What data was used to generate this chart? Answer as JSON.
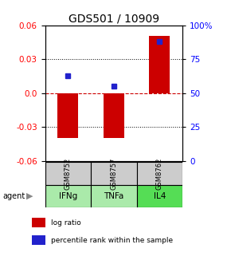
{
  "title": "GDS501 / 10909",
  "samples": [
    "GSM8752",
    "GSM8757",
    "GSM8762"
  ],
  "agents": [
    "IFNg",
    "TNFa",
    "IL4"
  ],
  "log_ratios": [
    -0.04,
    -0.04,
    0.051
  ],
  "percentile_ranks": [
    0.63,
    0.55,
    0.88
  ],
  "ylim_left": [
    -0.06,
    0.06
  ],
  "yticks_left": [
    -0.06,
    -0.03,
    0.0,
    0.03,
    0.06
  ],
  "yticks_right": [
    0.0,
    0.25,
    0.5,
    0.75,
    1.0
  ],
  "ytick_right_labels": [
    "0",
    "25",
    "50",
    "75",
    "100%"
  ],
  "bar_color": "#cc0000",
  "dot_color": "#2222cc",
  "zero_line_color": "#cc0000",
  "sample_bg_color": "#cccccc",
  "agent_bg_color_light": "#aaeaaa",
  "agent_bg_color_dark": "#55dd55",
  "title_fontsize": 10,
  "axis_fontsize": 7.5,
  "bar_width": 0.45
}
